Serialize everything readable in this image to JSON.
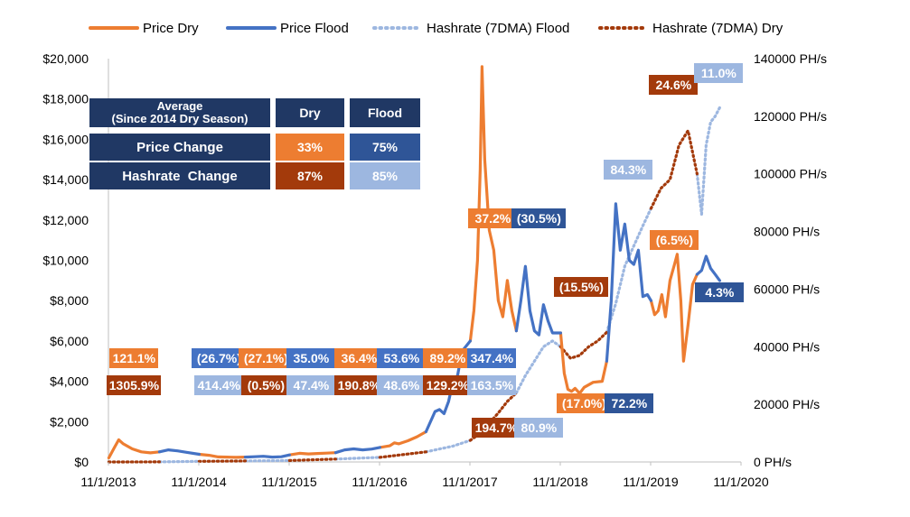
{
  "colors": {
    "price_dry": "#ED7D31",
    "price_flood": "#4472C4",
    "hash_flood": "#9DB7E0",
    "hash_dry": "#A33A0B",
    "navy": "#203864",
    "flood_box": "#2F5597"
  },
  "legend": [
    {
      "name": "Price Dry",
      "style": "solid",
      "color": "#ED7D31"
    },
    {
      "name": "Price Flood",
      "style": "solid",
      "color": "#4472C4"
    },
    {
      "name": "Hashrate (7DMA) Flood",
      "style": "dotted",
      "color": "#9DB7E0"
    },
    {
      "name": "Hashrate (7DMA) Dry",
      "style": "dotted",
      "color": "#A33A0B"
    }
  ],
  "table": {
    "header_left": "Average\n(Since 2014 Dry Season)",
    "header_dry": "Dry",
    "header_flood": "Flood",
    "rows": [
      {
        "label": "Price Change",
        "dry": "33%",
        "flood": "75%"
      },
      {
        "label": "Hashrate  Change",
        "dry": "87%",
        "flood": "85%"
      }
    ]
  },
  "annotations": [
    {
      "text": "121.1%",
      "kind": "price_dry",
      "date": 2014.12,
      "y_left": 5150
    },
    {
      "text": "(26.7%)",
      "kind": "price_flood",
      "date": 2015.06,
      "y_left": 5150
    },
    {
      "text": "(27.1%)",
      "kind": "price_dry",
      "date": 2015.58,
      "y_left": 5150
    },
    {
      "text": "35.0%",
      "kind": "price_flood",
      "date": 2016.08,
      "y_left": 5150
    },
    {
      "text": "36.4%",
      "kind": "price_dry",
      "date": 2016.61,
      "y_left": 5150
    },
    {
      "text": "53.6%",
      "kind": "price_flood",
      "date": 2017.08,
      "y_left": 5150
    },
    {
      "text": "89.2%",
      "kind": "price_dry",
      "date": 2017.59,
      "y_left": 5150
    },
    {
      "text": "347.4%",
      "kind": "price_flood",
      "date": 2018.08,
      "y_left": 5150
    },
    {
      "text": "1305.9%",
      "kind": "hash_dry",
      "date": 2014.12,
      "y_left": 3800
    },
    {
      "text": "414.4%",
      "kind": "hash_flood",
      "date": 2015.06,
      "y_left": 3800
    },
    {
      "text": "(0.5%)",
      "kind": "hash_dry",
      "date": 2015.58,
      "y_left": 3800
    },
    {
      "text": "47.4%",
      "kind": "hash_flood",
      "date": 2016.08,
      "y_left": 3800
    },
    {
      "text": "190.8%",
      "kind": "hash_dry",
      "date": 2016.61,
      "y_left": 3800
    },
    {
      "text": "48.6%",
      "kind": "hash_flood",
      "date": 2017.08,
      "y_left": 3800
    },
    {
      "text": "129.2%",
      "kind": "hash_dry",
      "date": 2017.59,
      "y_left": 3800
    },
    {
      "text": "163.5%",
      "kind": "hash_flood",
      "date": 2018.08,
      "y_left": 3800
    },
    {
      "text": "37.2%",
      "kind": "price_dry",
      "date": 2018.09,
      "y_left": 12100
    },
    {
      "text": "(30.5%)",
      "kind": "price_flood_dark",
      "date": 2018.6,
      "y_left": 12100
    },
    {
      "text": "194.7%",
      "kind": "hash_dry",
      "date": 2018.13,
      "y_left": 1700
    },
    {
      "text": "80.9%",
      "kind": "hash_flood",
      "date": 2018.6,
      "y_left": 1700
    },
    {
      "text": "(15.5%)",
      "kind": "hash_dry",
      "date": 2019.07,
      "y_left": 8700
    },
    {
      "text": "(17.0%)",
      "kind": "price_dry",
      "date": 2019.1,
      "y_left": 2900
    },
    {
      "text": "72.2%",
      "kind": "price_flood_dark",
      "date": 2019.6,
      "y_left": 2900
    },
    {
      "text": "84.3%",
      "kind": "hash_flood",
      "date": 2019.59,
      "y_left": 14500
    },
    {
      "text": "(6.5%)",
      "kind": "price_dry",
      "date": 2020.1,
      "y_left": 11000
    },
    {
      "text": "24.6%",
      "kind": "hash_dry",
      "date": 2020.09,
      "y_left": 18700
    },
    {
      "text": "11.0%",
      "kind": "hash_flood",
      "date": 2020.59,
      "y_left": 19300
    },
    {
      "text": "4.3%",
      "kind": "price_flood_dark",
      "date": 2020.6,
      "y_left": 8400
    }
  ],
  "chart_data": {
    "type": "line",
    "xlabel": "",
    "ylabel": "",
    "xlim": [
      "11/1/2013",
      "11/1/2020"
    ],
    "x_ticks": [
      "11/1/2013",
      "11/1/2014",
      "11/1/2015",
      "11/1/2016",
      "11/1/2017",
      "11/1/2018",
      "11/1/2019",
      "11/1/2020"
    ],
    "y_left": {
      "lim": [
        0,
        20000
      ],
      "ticks": [
        "$0",
        "$2,000",
        "$4,000",
        "$6,000",
        "$8,000",
        "$10,000",
        "$12,000",
        "$14,000",
        "$16,000",
        "$18,000",
        "$20,000"
      ]
    },
    "y_right": {
      "lim": [
        0,
        140000
      ],
      "ticks": [
        "0 PH/s",
        "20000 PH/s",
        "40000 PH/s",
        "60000 PH/s",
        "80000 PH/s",
        "100000 PH/s",
        "120000 PH/s",
        "140000 PH/s"
      ]
    },
    "series": [
      {
        "name": "Price Dry",
        "axis": "left",
        "segments": [
          [
            [
              2013.84,
              200
            ],
            [
              2013.9,
              700
            ],
            [
              2013.95,
              1100
            ],
            [
              2014.0,
              900
            ],
            [
              2014.1,
              650
            ],
            [
              2014.2,
              500
            ],
            [
              2014.3,
              450
            ],
            [
              2014.4,
              500
            ]
          ],
          [
            [
              2014.84,
              380
            ],
            [
              2014.95,
              330
            ],
            [
              2015.05,
              250
            ],
            [
              2015.15,
              240
            ],
            [
              2015.25,
              230
            ],
            [
              2015.35,
              240
            ]
          ],
          [
            [
              2015.84,
              350
            ],
            [
              2015.95,
              430
            ],
            [
              2016.05,
              400
            ],
            [
              2016.15,
              420
            ],
            [
              2016.25,
              440
            ],
            [
              2016.35,
              460
            ]
          ],
          [
            [
              2016.84,
              720
            ],
            [
              2016.95,
              800
            ],
            [
              2017.0,
              950
            ],
            [
              2017.05,
              900
            ],
            [
              2017.15,
              1050
            ],
            [
              2017.25,
              1250
            ],
            [
              2017.35,
              1500
            ]
          ],
          [
            [
              2017.84,
              6000
            ],
            [
              2017.88,
              7500
            ],
            [
              2017.92,
              10000
            ],
            [
              2017.95,
              14500
            ],
            [
              2017.97,
              19600
            ],
            [
              2018.0,
              15000
            ],
            [
              2018.05,
              11500
            ],
            [
              2018.1,
              10500
            ],
            [
              2018.15,
              8000
            ],
            [
              2018.2,
              7200
            ],
            [
              2018.25,
              9000
            ],
            [
              2018.3,
              7500
            ],
            [
              2018.35,
              6500
            ]
          ],
          [
            [
              2018.84,
              6400
            ],
            [
              2018.88,
              4400
            ],
            [
              2018.92,
              3600
            ],
            [
              2018.96,
              3500
            ],
            [
              2019.0,
              3650
            ],
            [
              2019.05,
              3400
            ],
            [
              2019.1,
              3700
            ],
            [
              2019.2,
              3950
            ],
            [
              2019.3,
              4000
            ],
            [
              2019.35,
              5000
            ]
          ],
          [
            [
              2019.84,
              8000
            ],
            [
              2019.88,
              7300
            ],
            [
              2019.92,
              7500
            ],
            [
              2019.96,
              8300
            ],
            [
              2020.0,
              7200
            ],
            [
              2020.05,
              9000
            ],
            [
              2020.1,
              9800
            ],
            [
              2020.13,
              10300
            ],
            [
              2020.17,
              8000
            ],
            [
              2020.2,
              5000
            ],
            [
              2020.25,
              6800
            ],
            [
              2020.3,
              8800
            ],
            [
              2020.35,
              9300
            ]
          ]
        ]
      },
      {
        "name": "Price Flood",
        "axis": "left",
        "segments": [
          [
            [
              2014.4,
              500
            ],
            [
              2014.5,
              600
            ],
            [
              2014.6,
              550
            ],
            [
              2014.7,
              480
            ],
            [
              2014.84,
              380
            ]
          ],
          [
            [
              2015.35,
              240
            ],
            [
              2015.45,
              260
            ],
            [
              2015.55,
              280
            ],
            [
              2015.65,
              240
            ],
            [
              2015.75,
              260
            ],
            [
              2015.84,
              350
            ]
          ],
          [
            [
              2016.35,
              460
            ],
            [
              2016.45,
              600
            ],
            [
              2016.55,
              650
            ],
            [
              2016.65,
              600
            ],
            [
              2016.75,
              640
            ],
            [
              2016.84,
              720
            ]
          ],
          [
            [
              2017.35,
              1500
            ],
            [
              2017.45,
              2500
            ],
            [
              2017.5,
              2600
            ],
            [
              2017.55,
              2400
            ],
            [
              2017.6,
              3000
            ],
            [
              2017.65,
              4000
            ],
            [
              2017.7,
              4300
            ],
            [
              2017.75,
              5500
            ],
            [
              2017.84,
              6000
            ]
          ],
          [
            [
              2018.35,
              6500
            ],
            [
              2018.4,
              8000
            ],
            [
              2018.45,
              9700
            ],
            [
              2018.5,
              7500
            ],
            [
              2018.55,
              6500
            ],
            [
              2018.6,
              6300
            ],
            [
              2018.65,
              7800
            ],
            [
              2018.7,
              7000
            ],
            [
              2018.75,
              6400
            ],
            [
              2018.84,
              6400
            ]
          ],
          [
            [
              2019.35,
              5000
            ],
            [
              2019.4,
              8000
            ],
            [
              2019.45,
              12800
            ],
            [
              2019.5,
              10500
            ],
            [
              2019.55,
              11800
            ],
            [
              2019.6,
              10000
            ],
            [
              2019.65,
              9800
            ],
            [
              2019.7,
              10500
            ],
            [
              2019.75,
              8200
            ],
            [
              2019.8,
              8300
            ],
            [
              2019.84,
              8000
            ]
          ],
          [
            [
              2020.35,
              9300
            ],
            [
              2020.4,
              9500
            ],
            [
              2020.45,
              10200
            ],
            [
              2020.5,
              9600
            ],
            [
              2020.55,
              9300
            ],
            [
              2020.6,
              9000
            ]
          ]
        ]
      },
      {
        "name": "Hashrate (7DMA) Flood",
        "axis": "right",
        "segments": [
          [
            [
              2014.4,
              40
            ],
            [
              2014.84,
              210
            ]
          ],
          [
            [
              2015.35,
              330
            ],
            [
              2015.84,
              500
            ]
          ],
          [
            [
              2016.35,
              1000
            ],
            [
              2016.84,
              1600
            ]
          ],
          [
            [
              2017.35,
              3500
            ],
            [
              2017.5,
              4500
            ],
            [
              2017.65,
              5500
            ],
            [
              2017.84,
              7500
            ]
          ],
          [
            [
              2018.35,
              24000
            ],
            [
              2018.45,
              30000
            ],
            [
              2018.55,
              35000
            ],
            [
              2018.65,
              40000
            ],
            [
              2018.75,
              42000
            ],
            [
              2018.84,
              40000
            ]
          ],
          [
            [
              2019.35,
              45000
            ],
            [
              2019.45,
              55000
            ],
            [
              2019.55,
              68000
            ],
            [
              2019.65,
              75000
            ],
            [
              2019.75,
              82000
            ],
            [
              2019.84,
              88000
            ]
          ],
          [
            [
              2020.35,
              100000
            ],
            [
              2020.4,
              86000
            ],
            [
              2020.45,
              110000
            ],
            [
              2020.5,
              118000
            ],
            [
              2020.55,
              120000
            ],
            [
              2020.6,
              123000
            ]
          ]
        ]
      },
      {
        "name": "Hashrate (7DMA) Dry",
        "axis": "right",
        "segments": [
          [
            [
              2013.84,
              3
            ],
            [
              2014.4,
              40
            ]
          ],
          [
            [
              2014.84,
              210
            ],
            [
              2015.35,
              330
            ]
          ],
          [
            [
              2015.84,
              500
            ],
            [
              2016.35,
              1000
            ]
          ],
          [
            [
              2016.84,
              1600
            ],
            [
              2017.35,
              3500
            ]
          ],
          [
            [
              2017.84,
              7500
            ],
            [
              2017.95,
              10000
            ],
            [
              2018.05,
              13500
            ],
            [
              2018.15,
              17000
            ],
            [
              2018.25,
              21000
            ],
            [
              2018.35,
              24000
            ]
          ],
          [
            [
              2018.84,
              40000
            ],
            [
              2018.95,
              36000
            ],
            [
              2019.05,
              37000
            ],
            [
              2019.15,
              40000
            ],
            [
              2019.25,
              42000
            ],
            [
              2019.35,
              45000
            ]
          ],
          [
            [
              2019.84,
              88000
            ],
            [
              2019.95,
              95000
            ],
            [
              2020.05,
              98000
            ],
            [
              2020.15,
              110000
            ],
            [
              2020.25,
              115000
            ],
            [
              2020.35,
              100000
            ]
          ]
        ]
      }
    ]
  }
}
